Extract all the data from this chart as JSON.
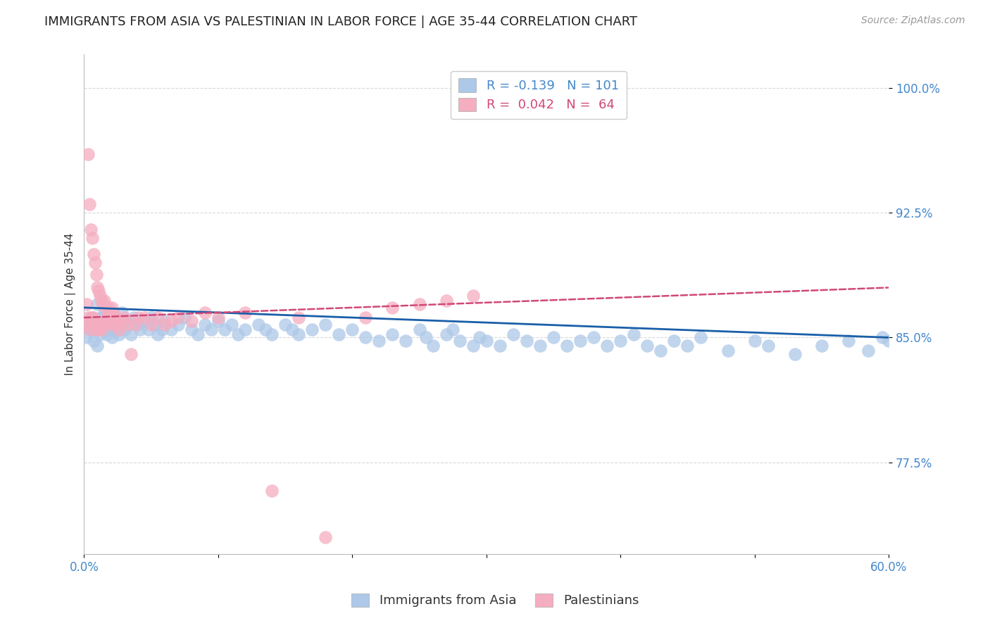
{
  "title": "IMMIGRANTS FROM ASIA VS PALESTINIAN IN LABOR FORCE | AGE 35-44 CORRELATION CHART",
  "source": "Source: ZipAtlas.com",
  "ylabel": "In Labor Force | Age 35-44",
  "xlim": [
    0.0,
    0.6
  ],
  "ylim": [
    0.72,
    1.02
  ],
  "yticks": [
    0.775,
    0.85,
    0.925,
    1.0
  ],
  "ytick_labels": [
    "77.5%",
    "85.0%",
    "92.5%",
    "100.0%"
  ],
  "xticks": [
    0.0,
    0.1,
    0.2,
    0.3,
    0.4,
    0.5,
    0.6
  ],
  "xtick_labels": [
    "0.0%",
    "",
    "",
    "",
    "",
    "",
    "60.0%"
  ],
  "asia_color": "#adc8e8",
  "asia_line_color": "#1a5fa8",
  "palestinian_color": "#f5adc0",
  "palestinian_line_color": "#d04878",
  "axis_color": "#4488cc",
  "background_color": "#ffffff",
  "grid_color": "#d8d8d8",
  "title_fontsize": 13,
  "label_fontsize": 11,
  "tick_fontsize": 12,
  "asia_x": [
    0.002,
    0.004,
    0.005,
    0.006,
    0.007,
    0.008,
    0.009,
    0.01,
    0.01,
    0.011,
    0.012,
    0.013,
    0.014,
    0.015,
    0.016,
    0.017,
    0.018,
    0.019,
    0.02,
    0.021,
    0.022,
    0.023,
    0.024,
    0.025,
    0.026,
    0.027,
    0.028,
    0.03,
    0.031,
    0.033,
    0.035,
    0.037,
    0.04,
    0.042,
    0.045,
    0.048,
    0.05,
    0.053,
    0.055,
    0.058,
    0.06,
    0.065,
    0.07,
    0.075,
    0.08,
    0.085,
    0.09,
    0.095,
    0.1,
    0.105,
    0.11,
    0.115,
    0.12,
    0.13,
    0.135,
    0.14,
    0.15,
    0.155,
    0.16,
    0.17,
    0.18,
    0.19,
    0.2,
    0.21,
    0.22,
    0.23,
    0.24,
    0.25,
    0.255,
    0.26,
    0.27,
    0.275,
    0.28,
    0.29,
    0.295,
    0.3,
    0.31,
    0.32,
    0.33,
    0.34,
    0.35,
    0.36,
    0.37,
    0.38,
    0.39,
    0.4,
    0.41,
    0.42,
    0.43,
    0.44,
    0.45,
    0.46,
    0.48,
    0.5,
    0.51,
    0.53,
    0.55,
    0.57,
    0.585,
    0.595,
    0.6
  ],
  "asia_y": [
    0.85,
    0.855,
    0.858,
    0.862,
    0.848,
    0.86,
    0.855,
    0.87,
    0.845,
    0.858,
    0.852,
    0.862,
    0.855,
    0.865,
    0.858,
    0.852,
    0.86,
    0.855,
    0.862,
    0.85,
    0.858,
    0.862,
    0.855,
    0.86,
    0.852,
    0.858,
    0.865,
    0.855,
    0.86,
    0.858,
    0.852,
    0.862,
    0.858,
    0.855,
    0.86,
    0.855,
    0.862,
    0.858,
    0.852,
    0.855,
    0.86,
    0.855,
    0.858,
    0.862,
    0.855,
    0.852,
    0.858,
    0.855,
    0.86,
    0.855,
    0.858,
    0.852,
    0.855,
    0.858,
    0.855,
    0.852,
    0.858,
    0.855,
    0.852,
    0.855,
    0.858,
    0.852,
    0.855,
    0.85,
    0.848,
    0.852,
    0.848,
    0.855,
    0.85,
    0.845,
    0.852,
    0.855,
    0.848,
    0.845,
    0.85,
    0.848,
    0.845,
    0.852,
    0.848,
    0.845,
    0.85,
    0.845,
    0.848,
    0.85,
    0.845,
    0.848,
    0.852,
    0.845,
    0.842,
    0.848,
    0.845,
    0.85,
    0.842,
    0.848,
    0.845,
    0.84,
    0.845,
    0.848,
    0.842,
    0.85,
    0.848
  ],
  "pal_x": [
    0.001,
    0.002,
    0.003,
    0.003,
    0.004,
    0.004,
    0.005,
    0.005,
    0.006,
    0.006,
    0.007,
    0.007,
    0.008,
    0.008,
    0.009,
    0.009,
    0.01,
    0.01,
    0.011,
    0.011,
    0.012,
    0.012,
    0.013,
    0.013,
    0.014,
    0.014,
    0.015,
    0.015,
    0.016,
    0.017,
    0.018,
    0.018,
    0.019,
    0.02,
    0.021,
    0.022,
    0.023,
    0.024,
    0.025,
    0.026,
    0.028,
    0.03,
    0.032,
    0.035,
    0.038,
    0.04,
    0.045,
    0.05,
    0.055,
    0.06,
    0.065,
    0.07,
    0.08,
    0.09,
    0.1,
    0.12,
    0.14,
    0.16,
    0.18,
    0.21,
    0.23,
    0.25,
    0.27,
    0.29
  ],
  "pal_y": [
    0.858,
    0.87,
    0.96,
    0.862,
    0.93,
    0.855,
    0.915,
    0.862,
    0.91,
    0.858,
    0.9,
    0.862,
    0.895,
    0.858,
    0.888,
    0.855,
    0.88,
    0.858,
    0.878,
    0.855,
    0.875,
    0.858,
    0.872,
    0.855,
    0.87,
    0.858,
    0.872,
    0.86,
    0.868,
    0.862,
    0.868,
    0.858,
    0.865,
    0.862,
    0.868,
    0.865,
    0.858,
    0.862,
    0.858,
    0.855,
    0.86,
    0.862,
    0.858,
    0.84,
    0.858,
    0.862,
    0.862,
    0.858,
    0.862,
    0.858,
    0.86,
    0.862,
    0.86,
    0.865,
    0.862,
    0.865,
    0.758,
    0.862,
    0.73,
    0.862,
    0.868,
    0.87,
    0.872,
    0.875
  ]
}
